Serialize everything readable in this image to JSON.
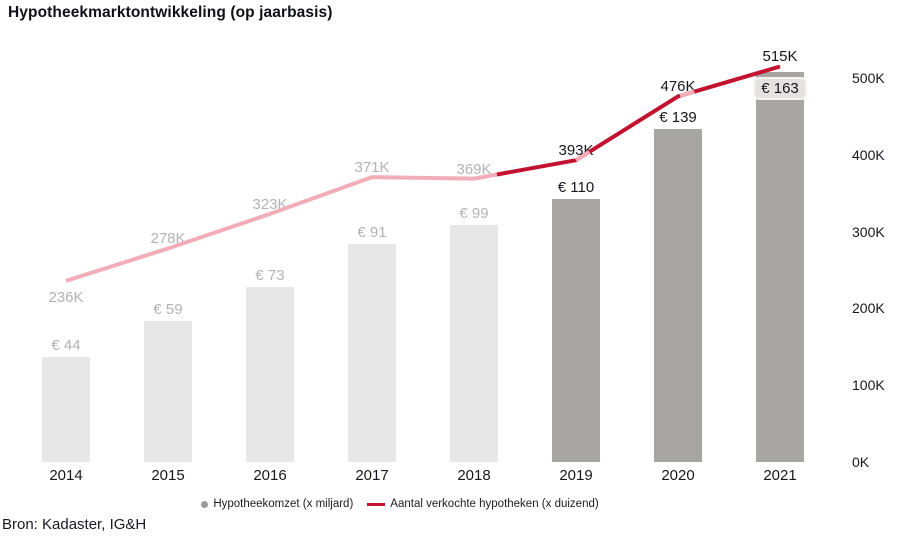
{
  "source": "Bron: Kadaster, IG&H",
  "colors": {
    "bar_muted": "#e7e7e7",
    "bar_highlight": "#a7a5a2",
    "line_muted": "#f2adb9",
    "line_highlight": "#c31230",
    "label_muted": "#b3b3b7",
    "label_dark": "#17171f",
    "badge_bg": "#e5e3e1",
    "badge_border": "#f5f4f2",
    "legend_dot": "#9b9b9b",
    "text": "#17171f"
  },
  "chart_data": {
    "type": "bar+line",
    "title": "Hypotheekmarktontwikkeling (op jaarbasis)",
    "categories": [
      "2014",
      "2015",
      "2016",
      "2017",
      "2018",
      "2019",
      "2020",
      "2021"
    ],
    "series": [
      {
        "name": "Hypotheekomzet (x miljard)",
        "type": "bar",
        "unit": "EUR miljard",
        "values": [
          44,
          59,
          73,
          91,
          99,
          110,
          139,
          163
        ],
        "labels": [
          "€ 44",
          "€ 59",
          "€ 73",
          "€ 91",
          "€ 99",
          "€ 110",
          "€ 139",
          "€ 163"
        ]
      },
      {
        "name": "Aantal verkochte hypotheken (x duizend)",
        "type": "line",
        "unit": "x duizend",
        "values": [
          236,
          278,
          323,
          371,
          369,
          393,
          476,
          515
        ],
        "labels": [
          "236K",
          "278K",
          "323K",
          "371K",
          "369K",
          "393K",
          "476K",
          "515K"
        ]
      }
    ],
    "highlight_from_index": 5,
    "boxed_label_index": 7,
    "label_below_index": 0,
    "right_axis": {
      "min": 0,
      "max": 500,
      "ticks": [
        "0K",
        "100K",
        "200K",
        "300K",
        "400K",
        "500K"
      ]
    },
    "legend_position": "bottom-center",
    "grid": false
  }
}
